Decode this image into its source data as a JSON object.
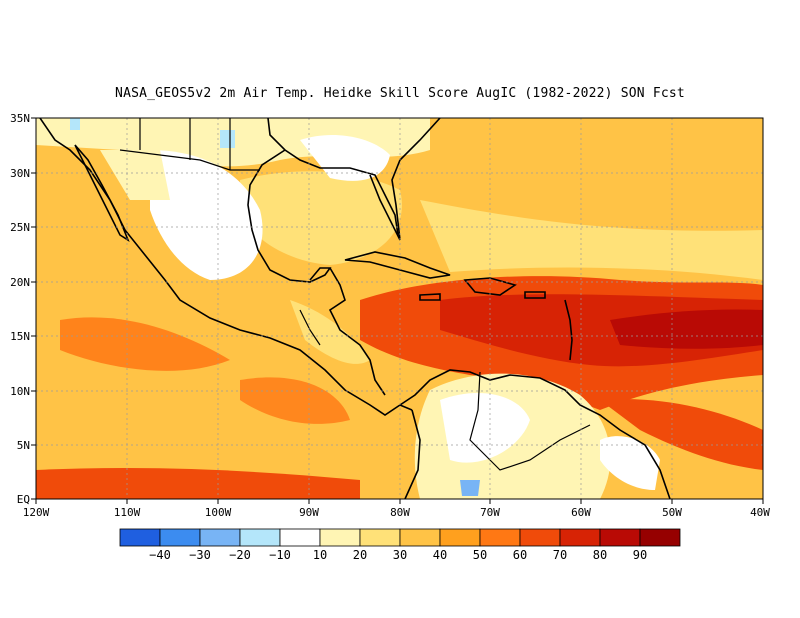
{
  "title": "NASA_GEOS5v2  2m Air Temp. Heidke Skill Score AugIC (1982-2022) SON Fcst",
  "lat_ticks": [
    "35N",
    "30N",
    "25N",
    "20N",
    "15N",
    "10N",
    "5N",
    "EQ"
  ],
  "lon_ticks": [
    "120W",
    "110W",
    "100W",
    "90W",
    "80W",
    "70W",
    "60W",
    "50W",
    "40W"
  ],
  "colorbar": {
    "colors": [
      "#1f5fe0",
      "#3c8cf0",
      "#78b4f5",
      "#b4e6fa",
      "#ffffff",
      "#fff5b4",
      "#ffe178",
      "#ffc346",
      "#ffa01e",
      "#ff7814",
      "#f04b0a",
      "#d72305",
      "#b90a05",
      "#960000"
    ],
    "labels": [
      "−40",
      "−30",
      "−20",
      "−10",
      "10",
      "20",
      "30",
      "40",
      "50",
      "60",
      "70",
      "80",
      "90"
    ]
  },
  "chart_data": {
    "type": "heatmap",
    "variable": "2m Air Temp. Heidke Skill Score",
    "lon_range": [
      -120,
      -40
    ],
    "lat_range": [
      0,
      35
    ],
    "color_levels": [
      -40,
      -30,
      -20,
      -10,
      10,
      20,
      30,
      40,
      50,
      60,
      70,
      80,
      90
    ],
    "regions": [
      {
        "area": "Caribbean Sea / tropical Atlantic 10N-20N",
        "score": 70
      },
      {
        "area": "Central tropical Atlantic 12N-18N, 60W-40W",
        "score": 80
      },
      {
        "area": "Eastern Pacific",
        "score": 40
      },
      {
        "area": "Gulf of Mexico",
        "score": 20
      },
      {
        "area": "Mexico / southern US interior",
        "score": 10
      },
      {
        "area": "Northern South America interior",
        "score": 10
      },
      {
        "area": "Subtropical North Atlantic 25N-35N",
        "score": 40
      }
    ]
  }
}
